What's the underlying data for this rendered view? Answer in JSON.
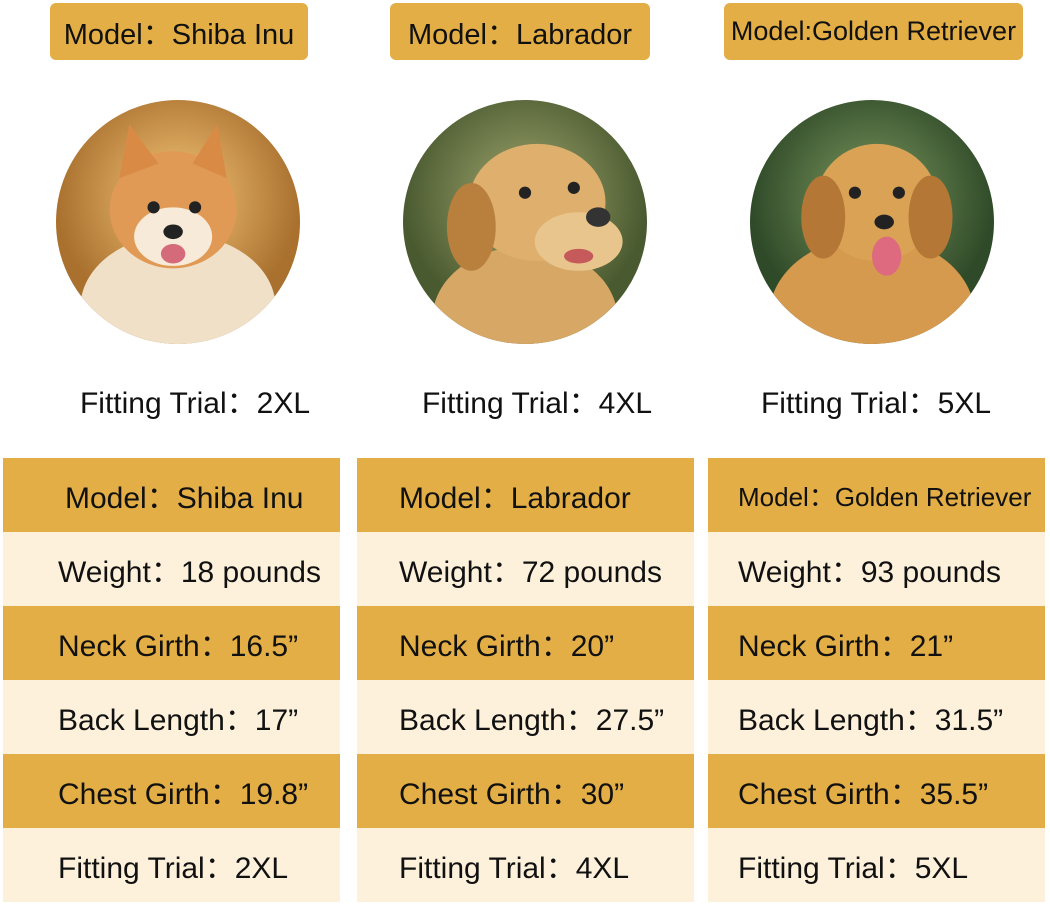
{
  "colors": {
    "gold": "#E2AE45",
    "cream": "#FDF1DC"
  },
  "dogs": [
    {
      "badge": "Model：Shiba Inu",
      "photo": "shiba-inu-photo",
      "trial": "Fitting Trial：2XL",
      "rows": [
        "Model：Shiba Inu",
        "Weight：18 pounds",
        "Neck Girth：16.5”",
        "Back Length：17”",
        "Chest Girth：19.8”",
        "Fitting Trial：2XL"
      ]
    },
    {
      "badge": "Model：Labrador",
      "photo": "labrador-photo",
      "trial": "Fitting Trial：4XL",
      "rows": [
        "Model：Labrador",
        "Weight：72 pounds",
        "Neck Girth：20”",
        "Back Length：27.5”",
        "Chest Girth：30”",
        "Fitting Trial：4XL"
      ]
    },
    {
      "badge": "Model:Golden Retriever",
      "photo": "golden-retriever-photo",
      "trial": "Fitting Trial：5XL",
      "rows": [
        "Model：Golden Retriever",
        "Weight：93 pounds",
        "Neck Girth：21”",
        "Back Length：31.5”",
        "Chest Girth：35.5”",
        "Fitting Trial：5XL"
      ]
    }
  ]
}
